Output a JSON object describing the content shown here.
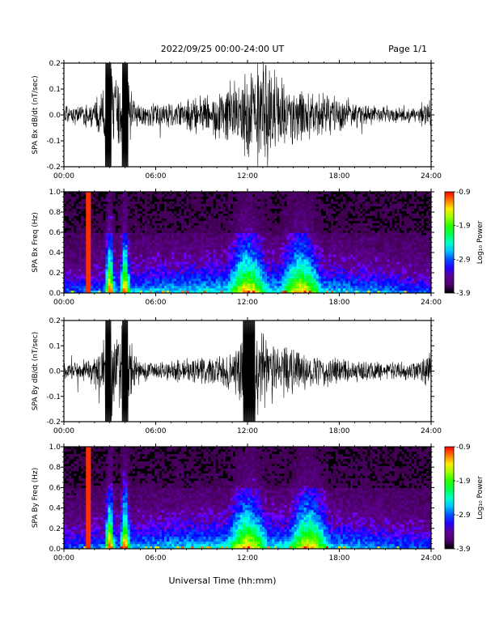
{
  "header": {
    "title": "2022/09/25  00:00-24:00 UT",
    "page": "Page 1/1"
  },
  "xlabel": "Universal Time (hh:mm)",
  "chart_data": [
    {
      "type": "line",
      "ylabel": "SPA Bx dB/dt (nT/sec)",
      "xlim": [
        0,
        24
      ],
      "ylim": [
        -0.2,
        0.2
      ],
      "x_ticks": [
        "00:00",
        "06:00",
        "12:00",
        "18:00",
        "24:00"
      ],
      "y_ticks": [
        "-0.2",
        "-0.1",
        "0.0",
        "0.1",
        "0.2"
      ],
      "envelope": {
        "hours": [
          0,
          1,
          2,
          2.5,
          3,
          3.5,
          4,
          4.5,
          5,
          6,
          7,
          8,
          9,
          10,
          11,
          12,
          13,
          14,
          15,
          16,
          17,
          18,
          19,
          20,
          21,
          22,
          23,
          24
        ],
        "amplitude": [
          0.03,
          0.035,
          0.05,
          0.08,
          0.2,
          0.1,
          0.2,
          0.06,
          0.04,
          0.035,
          0.045,
          0.055,
          0.07,
          0.09,
          0.11,
          0.16,
          0.2,
          0.14,
          0.1,
          0.08,
          0.07,
          0.06,
          0.045,
          0.035,
          0.03,
          0.03,
          0.035,
          0.06
        ]
      },
      "saturated_hours": [
        [
          2.7,
          3.1
        ],
        [
          3.8,
          4.2
        ]
      ]
    },
    {
      "type": "heatmap",
      "ylabel": "SPA Bx Freq (Hz)",
      "xlim": [
        0,
        24
      ],
      "ylim": [
        0.0,
        1.0
      ],
      "x_ticks": [
        "00:00",
        "06:00",
        "12:00",
        "18:00",
        "24:00"
      ],
      "y_ticks": [
        "0.0",
        "0.2",
        "0.4",
        "0.6",
        "0.8",
        "1.0"
      ],
      "colorbar": {
        "label": "Log₁₀ Power",
        "range": [
          -3.9,
          -0.9
        ],
        "ticks": [
          "-0.9",
          "-1.9",
          "-2.9",
          "-3.9"
        ]
      },
      "bright_lines_hours": [
        1.6
      ],
      "activity_peak_hours": [
        3.0,
        4.0,
        12.0,
        15.5
      ]
    },
    {
      "type": "line",
      "ylabel": "SPA By dB/dt (nT/sec)",
      "xlim": [
        0,
        24
      ],
      "ylim": [
        -0.2,
        0.2
      ],
      "x_ticks": [
        "00:00",
        "06:00",
        "12:00",
        "18:00",
        "24:00"
      ],
      "y_ticks": [
        "-0.2",
        "-0.1",
        "0.0",
        "0.1",
        "0.2"
      ],
      "envelope": {
        "hours": [
          0,
          1,
          2,
          2.5,
          3,
          3.5,
          4,
          4.5,
          5,
          6,
          7,
          8,
          9,
          10,
          11,
          12,
          13,
          14,
          15,
          16,
          17,
          18,
          19,
          20,
          21,
          22,
          23,
          24
        ],
        "amplitude": [
          0.03,
          0.035,
          0.05,
          0.09,
          0.2,
          0.1,
          0.2,
          0.06,
          0.04,
          0.03,
          0.035,
          0.045,
          0.05,
          0.06,
          0.08,
          0.2,
          0.14,
          0.1,
          0.08,
          0.06,
          0.05,
          0.045,
          0.04,
          0.035,
          0.03,
          0.03,
          0.03,
          0.07
        ]
      },
      "saturated_hours": [
        [
          2.7,
          3.1
        ],
        [
          3.8,
          4.2
        ],
        [
          11.7,
          12.5
        ]
      ]
    },
    {
      "type": "heatmap",
      "ylabel": "SPA By Freq (Hz)",
      "xlim": [
        0,
        24
      ],
      "ylim": [
        0.0,
        1.0
      ],
      "x_ticks": [
        "00:00",
        "06:00",
        "12:00",
        "18:00",
        "24:00"
      ],
      "y_ticks": [
        "0.0",
        "0.2",
        "0.4",
        "0.6",
        "0.8",
        "1.0"
      ],
      "colorbar": {
        "label": "Log₁₀ Power",
        "range": [
          -3.9,
          -0.9
        ],
        "ticks": [
          "-0.9",
          "-1.9",
          "-2.9",
          "-3.9"
        ]
      },
      "bright_lines_hours": [
        1.6
      ],
      "activity_peak_hours": [
        3.0,
        4.0,
        12.0,
        16.0
      ]
    }
  ]
}
